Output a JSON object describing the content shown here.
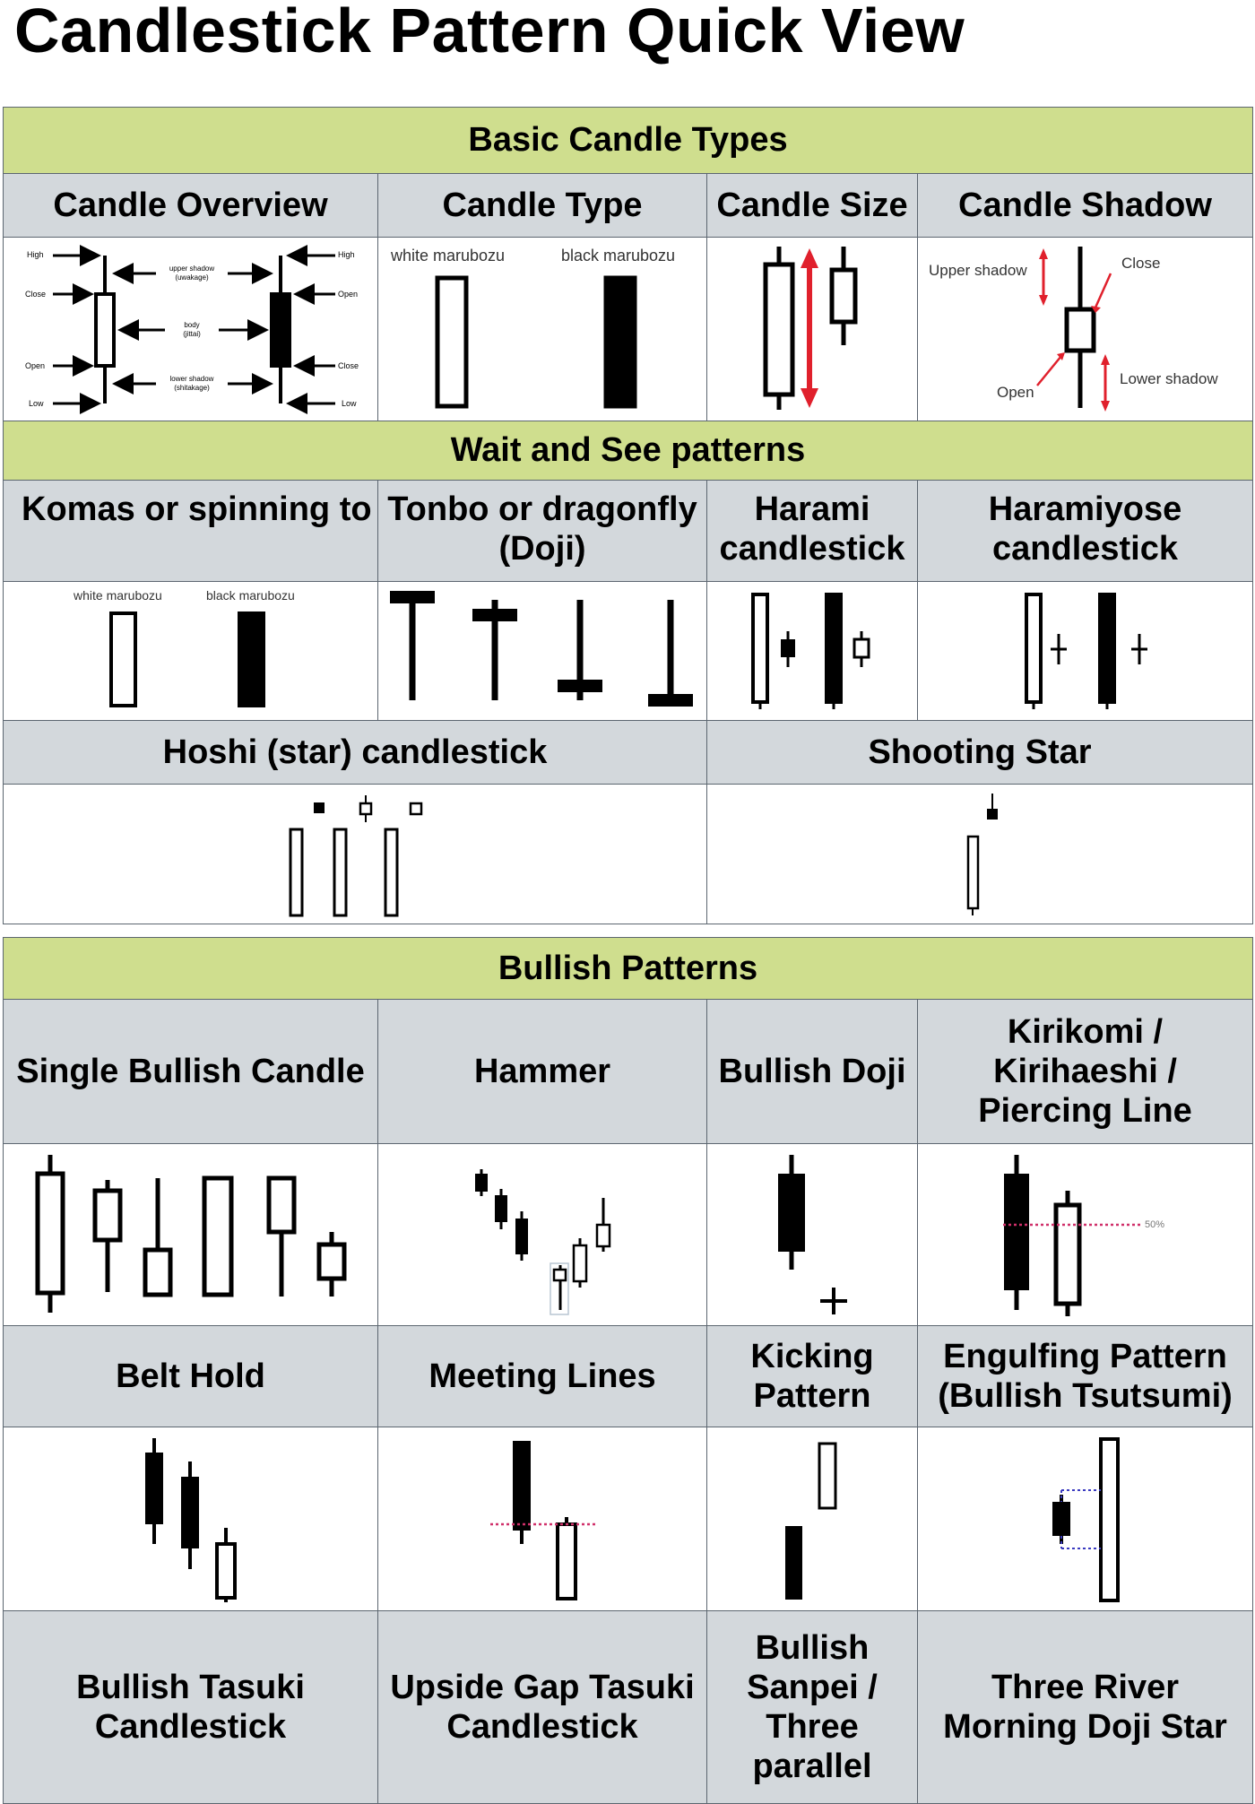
{
  "title": "Candlestick Pattern Quick View",
  "sections": {
    "basic": "Basic Candle Types",
    "wait": "Wait and See patterns",
    "bullish": "Bullish Patterns"
  },
  "headers": {
    "candle_overview": "Candle Overview",
    "candle_type": "Candle Type",
    "candle_size": "Candle Size",
    "candle_shadow": "Candle Shadow",
    "komas": "Komas or spinning to",
    "tonbo": "Tonbo or dragonfly\n(Doji)",
    "harami": "Harami\ncandlestick",
    "haramiyose": "Haramiyose\ncandlestick",
    "hoshi": "Hoshi (star) candlestick",
    "shooting_star": "Shooting Star",
    "single_bullish": "Single Bullish Candle",
    "hammer": "Hammer",
    "bullish_doji": "Bullish Doji",
    "kirikomi": "Kirikomi /\nKirihaeshi /\nPiercing Line",
    "belt_hold": "Belt Hold",
    "meeting_lines": "Meeting Lines",
    "kicking": "Kicking\nPattern",
    "engulfing": "Engulfing Pattern\n(Bullish Tsutsumi)",
    "tasuki": "Bullish Tasuki\nCandlestick",
    "upside_gap": "Upside Gap Tasuki\nCandlestick",
    "sanpei": "Bullish\nSanpei /\nThree\nparallel",
    "three_river": "Three River\nMorning Doji Star"
  },
  "overview_labels": {
    "high": "High",
    "close": "Close",
    "open": "Open",
    "low": "Low",
    "upper_shadow": "upper shadow",
    "upper_shadow_jp": "(uwakage)",
    "body": "body",
    "body_jp": "(jittai)",
    "lower_shadow": "lower shadow",
    "lower_shadow_jp": "(shitakage)"
  },
  "type_labels": {
    "white": "white marubozu",
    "black": "black marubozu"
  },
  "shadow_labels": {
    "upper": "Upper shadow",
    "close": "Close",
    "open": "Open",
    "lower": "Lower shadow"
  },
  "kirikomi_label": "50%",
  "colors": {
    "section_bg": "#cfde8e",
    "header_bg": "#d3d8dc",
    "border": "#5c6670",
    "arrow_red": "#e0202c",
    "dotted_line": "#d0306a",
    "dotted_blue": "#3a3ac0"
  }
}
